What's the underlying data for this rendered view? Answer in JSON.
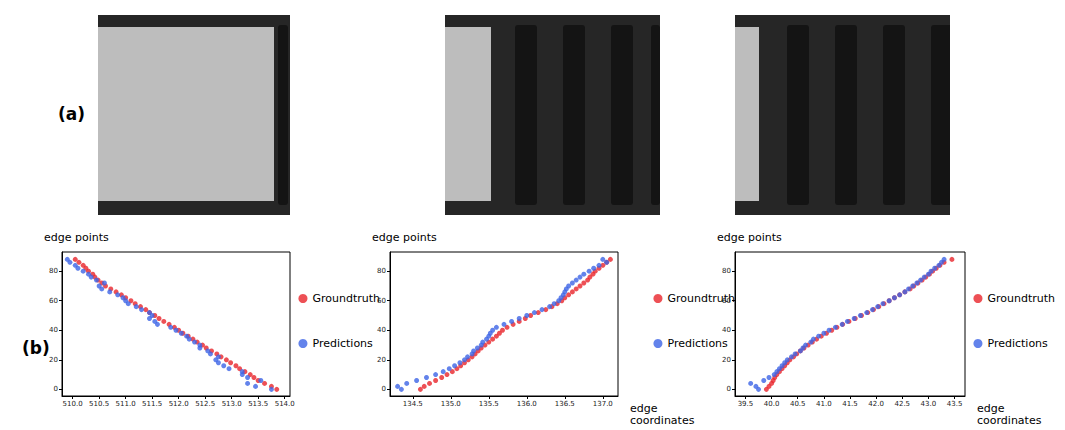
{
  "panel_labels": [
    "(a)",
    "(b)"
  ],
  "chart_data": [
    {
      "type": "scatter",
      "y_label": "edge points",
      "legend": "right",
      "marker": "circle",
      "xlim": [
        509.8,
        514.1
      ],
      "xticks": [
        {
          "value": 510,
          "label": "510.0"
        },
        510.5,
        {
          "value": 511,
          "label": "511.0"
        },
        511.5,
        {
          "value": 512,
          "label": "512.0"
        },
        512.5,
        {
          "value": 513,
          "label": "513.0"
        },
        513.5,
        {
          "value": 514,
          "label": "514.0"
        }
      ],
      "ylim": [
        -4.5,
        93
      ],
      "yticks": [
        0,
        20,
        40,
        60,
        80
      ],
      "series": [
        {
          "name": "Groundtruth",
          "color": "#e8242a",
          "x": [
            513.85,
            513.75,
            513.62,
            513.5,
            513.42,
            513.35,
            513.25,
            513.15,
            513.08,
            512.98,
            512.9,
            512.8,
            512.72,
            512.62,
            512.52,
            512.45,
            512.35,
            512.27,
            512.18,
            512.08,
            512.0,
            511.92,
            511.82,
            511.72,
            511.63,
            511.55,
            511.45,
            511.38,
            511.28,
            511.18,
            511.1,
            511.0,
            510.92,
            510.82,
            510.72,
            510.62,
            510.55,
            510.48,
            510.42,
            510.38,
            510.3,
            510.25,
            510.2,
            510.12,
            510.05
          ],
          "values": [
            0,
            2,
            4,
            6,
            8,
            10,
            12,
            14,
            16,
            18,
            20,
            22,
            24,
            26,
            28,
            30,
            32,
            34,
            36,
            38,
            40,
            42,
            44,
            46,
            48,
            50,
            52,
            54,
            56,
            58,
            60,
            62,
            64,
            66,
            68,
            70,
            72,
            74,
            76,
            78,
            80,
            82,
            84,
            86,
            88
          ]
        },
        {
          "name": "Predictions",
          "color": "#3c64e6",
          "x": [
            513.75,
            513.45,
            513.3,
            513.55,
            513.3,
            513.2,
            513.2,
            512.95,
            512.85,
            512.75,
            512.7,
            512.75,
            512.6,
            512.55,
            512.4,
            512.4,
            512.3,
            512.2,
            512.15,
            512.05,
            511.95,
            511.85,
            511.6,
            511.55,
            511.45,
            511.5,
            511.45,
            511.3,
            511.2,
            511.05,
            511.0,
            510.95,
            510.85,
            510.7,
            510.55,
            510.5,
            510.6,
            510.45,
            510.35,
            510.3,
            510.2,
            510.1,
            510.05,
            509.95,
            509.9
          ],
          "values": [
            0,
            2,
            4,
            6,
            8,
            10,
            12,
            14,
            16,
            18,
            20,
            22,
            24,
            26,
            28,
            30,
            32,
            34,
            36,
            38,
            40,
            42,
            44,
            46,
            48,
            50,
            52,
            54,
            56,
            58,
            60,
            62,
            64,
            66,
            68,
            70,
            72,
            74,
            76,
            78,
            80,
            82,
            84,
            86,
            88
          ]
        }
      ]
    },
    {
      "type": "scatter",
      "y_label": "edge points",
      "x_label": "edge coordinates",
      "legend": "right",
      "marker": "circle",
      "xlim": [
        134.2,
        137.2
      ],
      "xticks": [
        134.5,
        {
          "value": 135,
          "label": "135.0"
        },
        135.5,
        {
          "value": 136,
          "label": "136.0"
        },
        136.5,
        {
          "value": 137,
          "label": "137.0"
        }
      ],
      "ylim": [
        -4.5,
        93
      ],
      "yticks": [
        0,
        20,
        40,
        60,
        80
      ],
      "series": [
        {
          "name": "Groundtruth",
          "color": "#e8242a",
          "x": [
            134.6,
            134.65,
            134.72,
            134.8,
            134.88,
            134.95,
            135.02,
            135.08,
            135.13,
            135.18,
            135.23,
            135.28,
            135.32,
            135.36,
            135.4,
            135.45,
            135.5,
            135.55,
            135.6,
            135.64,
            135.68,
            135.74,
            135.82,
            135.9,
            135.98,
            136.05,
            136.15,
            136.25,
            136.33,
            136.4,
            136.46,
            136.5,
            136.55,
            136.6,
            136.65,
            136.7,
            136.75,
            136.8,
            136.83,
            136.87,
            136.9,
            136.95,
            137.0,
            137.05,
            137.1
          ],
          "values": [
            0,
            2,
            4,
            6,
            8,
            10,
            12,
            14,
            16,
            18,
            20,
            22,
            24,
            26,
            28,
            30,
            32,
            34,
            36,
            38,
            40,
            42,
            44,
            46,
            48,
            50,
            52,
            54,
            56,
            58,
            60,
            62,
            64,
            66,
            68,
            70,
            72,
            74,
            76,
            78,
            80,
            82,
            84,
            86,
            88
          ]
        },
        {
          "name": "Predictions",
          "color": "#3c64e6",
          "x": [
            134.35,
            134.3,
            134.42,
            134.55,
            134.68,
            134.8,
            134.9,
            134.98,
            135.05,
            135.12,
            135.18,
            135.22,
            135.28,
            135.3,
            135.35,
            135.4,
            135.42,
            135.47,
            135.5,
            135.52,
            135.55,
            135.6,
            135.7,
            135.8,
            135.9,
            136.0,
            136.1,
            136.2,
            136.3,
            136.36,
            136.42,
            136.45,
            136.48,
            136.5,
            136.52,
            136.55,
            136.6,
            136.65,
            136.7,
            136.75,
            136.82,
            136.88,
            136.95,
            137.05,
            137.0
          ],
          "values": [
            0,
            2,
            4,
            6,
            8,
            10,
            12,
            14,
            16,
            18,
            20,
            22,
            24,
            26,
            28,
            30,
            32,
            34,
            36,
            38,
            40,
            42,
            44,
            46,
            48,
            50,
            52,
            54,
            56,
            58,
            60,
            62,
            64,
            66,
            68,
            70,
            72,
            74,
            76,
            78,
            80,
            82,
            84,
            86,
            88
          ]
        }
      ]
    },
    {
      "type": "scatter",
      "y_label": "edge points",
      "x_label": "edge coordinates",
      "legend": "right",
      "marker": "circle",
      "xlim": [
        39.3,
        43.7
      ],
      "xticks": [
        39.5,
        {
          "value": 40,
          "label": "40.0"
        },
        40.5,
        {
          "value": 41,
          "label": "41.0"
        },
        41.5,
        {
          "value": 42,
          "label": "42.0"
        },
        42.5,
        {
          "value": 43,
          "label": "43.0"
        },
        43.5
      ],
      "ylim": [
        -4.5,
        93
      ],
      "yticks": [
        0,
        20,
        40,
        60,
        80
      ],
      "series": [
        {
          "name": "Groundtruth",
          "color": "#e8242a",
          "x": [
            39.9,
            39.95,
            40.0,
            40.03,
            40.06,
            40.1,
            40.15,
            40.2,
            40.25,
            40.3,
            40.35,
            40.42,
            40.48,
            40.55,
            40.62,
            40.7,
            40.78,
            40.86,
            40.95,
            41.05,
            41.15,
            41.25,
            41.36,
            41.48,
            41.6,
            41.72,
            41.84,
            41.95,
            42.05,
            42.15,
            42.25,
            42.35,
            42.45,
            42.55,
            42.65,
            42.72,
            42.8,
            42.88,
            42.95,
            43.02,
            43.08,
            43.15,
            43.22,
            43.3,
            43.45
          ],
          "values": [
            0,
            2,
            4,
            6,
            8,
            10,
            12,
            14,
            16,
            18,
            20,
            22,
            24,
            26,
            28,
            30,
            32,
            34,
            36,
            38,
            40,
            42,
            44,
            46,
            48,
            50,
            52,
            54,
            56,
            58,
            60,
            62,
            64,
            66,
            68,
            70,
            72,
            74,
            76,
            78,
            80,
            82,
            84,
            86,
            88
          ]
        },
        {
          "name": "Predictions",
          "color": "#3c64e6",
          "x": [
            39.75,
            39.7,
            39.6,
            39.85,
            39.95,
            40.05,
            40.1,
            40.15,
            40.2,
            40.25,
            40.3,
            40.38,
            40.45,
            40.55,
            40.6,
            40.65,
            40.75,
            40.8,
            40.9,
            41.0,
            41.1,
            41.22,
            41.35,
            41.45,
            41.58,
            41.7,
            41.82,
            41.93,
            42.03,
            42.13,
            42.25,
            42.35,
            42.45,
            42.55,
            42.62,
            42.7,
            42.78,
            42.85,
            42.92,
            43.0,
            43.05,
            43.12,
            43.2,
            43.25,
            43.3
          ],
          "values": [
            0,
            2,
            4,
            6,
            8,
            10,
            12,
            14,
            16,
            18,
            20,
            22,
            24,
            26,
            28,
            30,
            32,
            34,
            36,
            38,
            40,
            42,
            44,
            46,
            48,
            50,
            52,
            54,
            56,
            58,
            60,
            62,
            64,
            66,
            68,
            70,
            72,
            74,
            76,
            78,
            80,
            82,
            84,
            86,
            88
          ]
        }
      ]
    }
  ]
}
